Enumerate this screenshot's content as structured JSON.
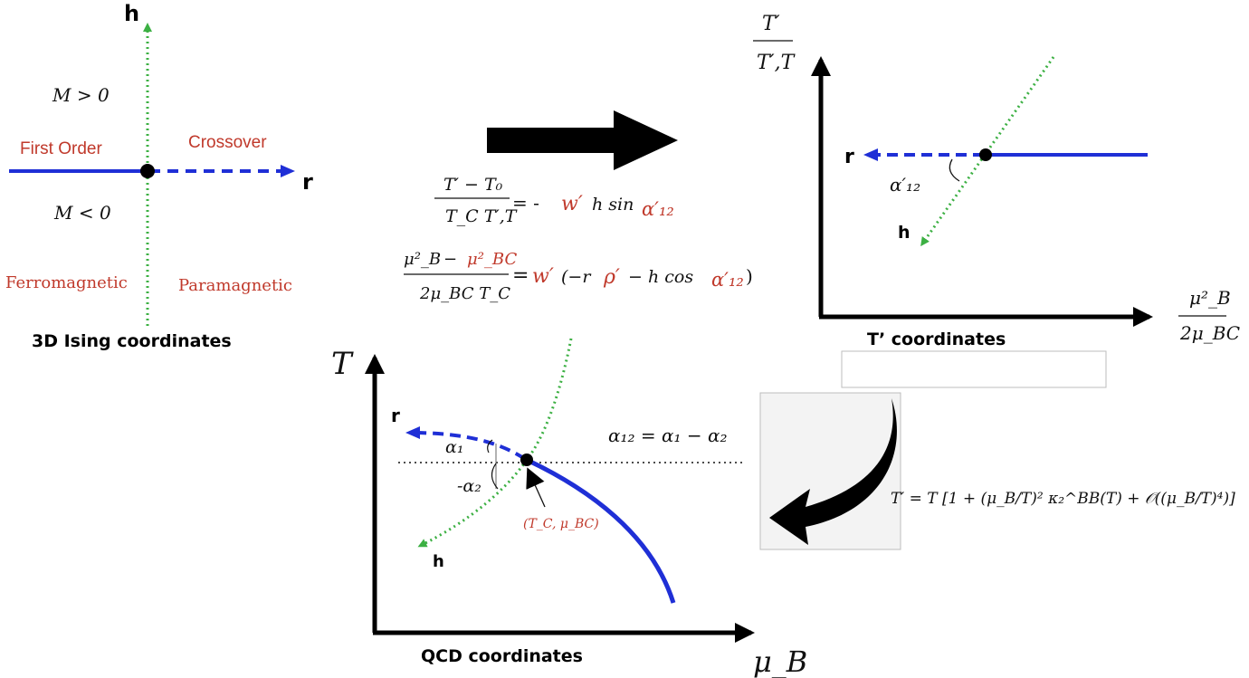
{
  "ising": {
    "h_label": "h",
    "r_label": "r",
    "m_pos": "M > 0",
    "m_neg": "M < 0",
    "first_order": "First Order",
    "crossover": "Crossover",
    "ferromagnetic": "Ferromagnetic",
    "paramagnetic": "Paramagnetic",
    "caption": "3D Ising coordinates"
  },
  "equations": {
    "eq1_num": "T′ − T₀",
    "eq1_den": "T_C T′,T",
    "eq1_rhs_prefix": "= -",
    "eq1_w": "w′",
    "eq1_rhs_mid": "h sin",
    "eq1_alpha": "α′₁₂",
    "eq2_num_a": "μ²_B",
    "eq2_num_minus": "−",
    "eq2_num_b": "μ²_BC",
    "eq2_den": "2μ_BC T_C",
    "eq2_rhs_eq": "=",
    "eq2_w": "w′",
    "eq2_rhs_a": "(−r",
    "eq2_rho": "ρ′",
    "eq2_rhs_b": "− h cos",
    "eq2_alpha": "α′₁₂",
    "eq2_close": ")"
  },
  "tprime": {
    "y_num": "T′",
    "y_den": "T′,T",
    "x_num": "μ²_B",
    "x_den": "2μ_BC",
    "r_label": "r",
    "h_label": "h",
    "alpha_label": "α′₁₂",
    "caption": "T’ coordinates"
  },
  "qcd": {
    "y_axis": "T",
    "x_axis": "μ_B",
    "r_label": "r",
    "h_label": "h",
    "alpha1": "α₁",
    "alpha2": "-α₂",
    "alpha_relation": "α₁₂ = α₁ − α₂",
    "cp_label": "(T_C, μ_BC)",
    "caption": "QCD coordinates"
  },
  "formula": {
    "text": "T′ = T [1 + (μ_B/T)² κ₂^BB(T) + 𝒪((μ_B/T)⁴)]"
  },
  "colors": {
    "blue": "#1f2fd6",
    "green": "#3cb043",
    "red_text": "#c0392b",
    "black": "#000000"
  }
}
